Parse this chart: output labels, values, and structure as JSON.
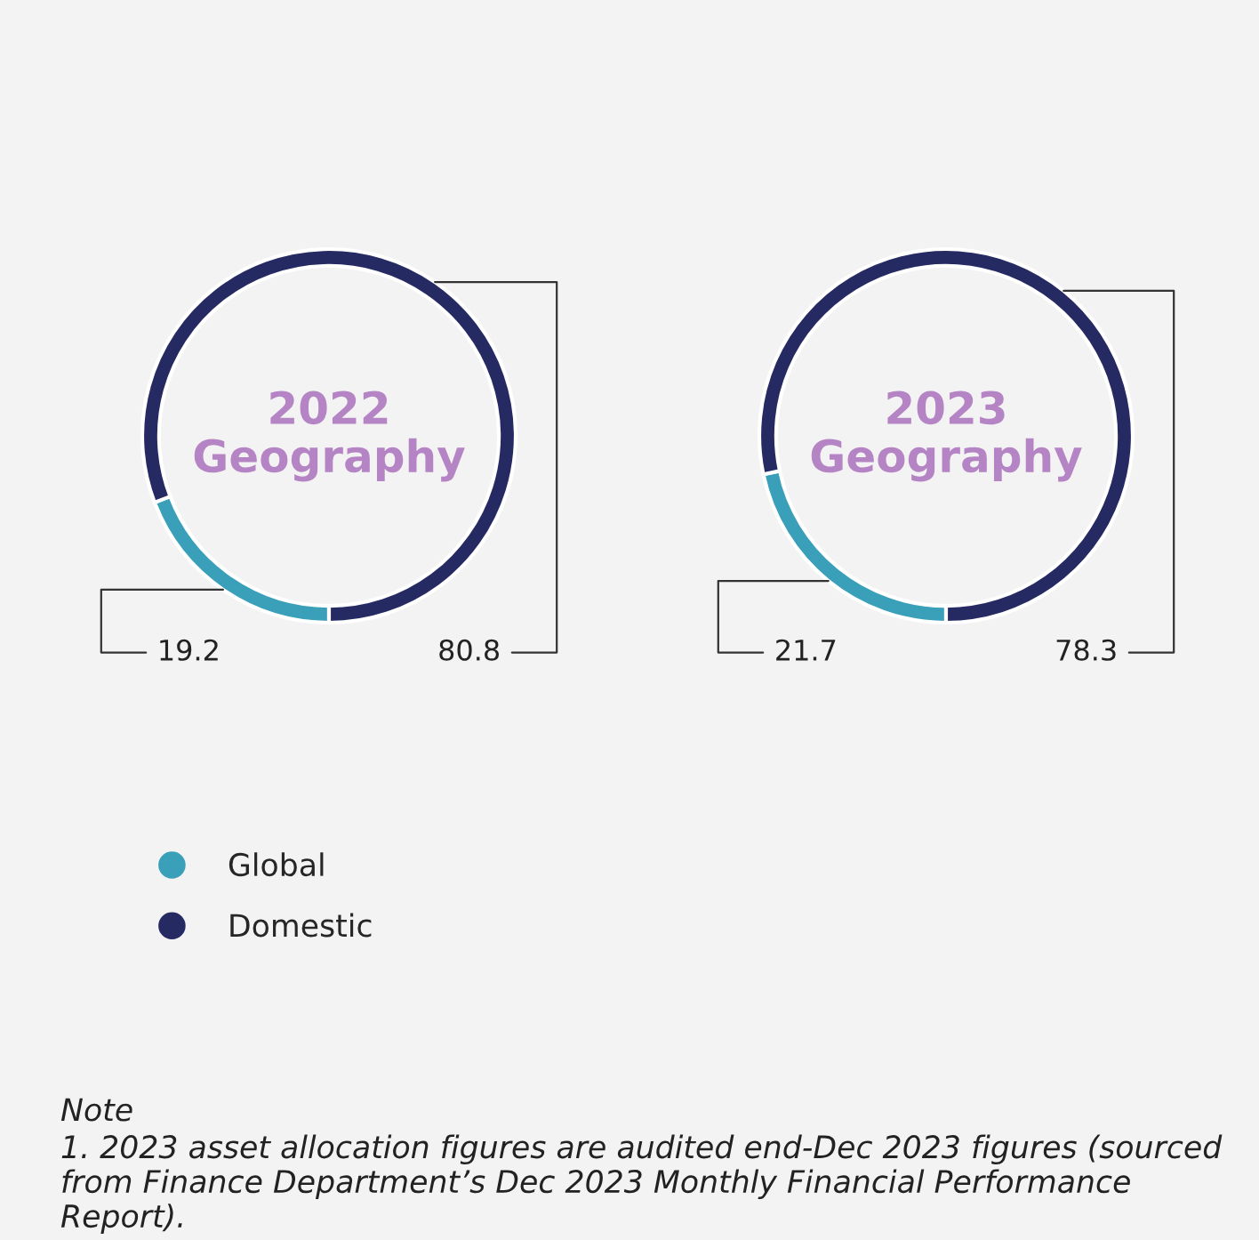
{
  "chart_data": [
    {
      "type": "donut",
      "title": "2022\nGeography",
      "categories": [
        "Global",
        "Domestic"
      ],
      "values": [
        19.2,
        80.8
      ],
      "colors": [
        "#3a9fb8",
        "#262a63"
      ],
      "data_labels": true,
      "legend": "bottom left",
      "annotations": [
        "Note",
        "1. 2023 asset allocation figures are audited end-Dec 2023 figures (sourced from Finance Department’s Dec 2023 Monthly Financial Performance Report)."
      ]
    },
    {
      "type": "donut",
      "title": "2023\nGeography",
      "categories": [
        null,
        null
      ],
      "values": [
        21.7,
        78.3
      ],
      "colors": [
        "#3a9fb8",
        "#262a63"
      ],
      "data_labels": true
    }
  ]
}
